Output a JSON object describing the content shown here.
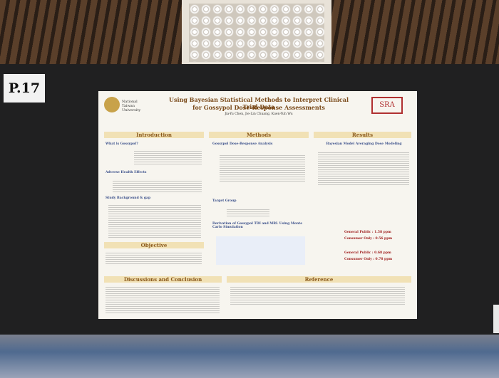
{
  "label": "P.17",
  "poster": {
    "title": "Using Bayesian Statistical Methods to Interpret Clinical Trial Data",
    "subtitle": "for Gossypol Dose-Response Assessments",
    "authors": "Jia-Yu Chen, Jie-Lin Chuang, Kuen-Yuh Wu",
    "university": "National Taiwan University",
    "society": "SRA",
    "sections": {
      "introduction": "Introduction",
      "methods": "Methods",
      "results": "Results",
      "objective": "Objective",
      "discussion": "Discussions and Conclusion",
      "reference": "Reference"
    },
    "subheads": [
      "What is Gossypol?",
      "Adverse Health Effects",
      "Study Background & gap",
      "Gossypol Dose-Response Analysis",
      "Target Group",
      "Derivation of Gossypol TDI and MRL Using Monte Carlo Simulation",
      "Bayesian Model Averaging Dose Modeling"
    ],
    "results": [
      "General Public : 1.58 ppm",
      "Consumer Only : 0.56 ppm",
      "General Public : 0.68 ppm",
      "Consumer Only : 0.78 ppm"
    ]
  }
}
